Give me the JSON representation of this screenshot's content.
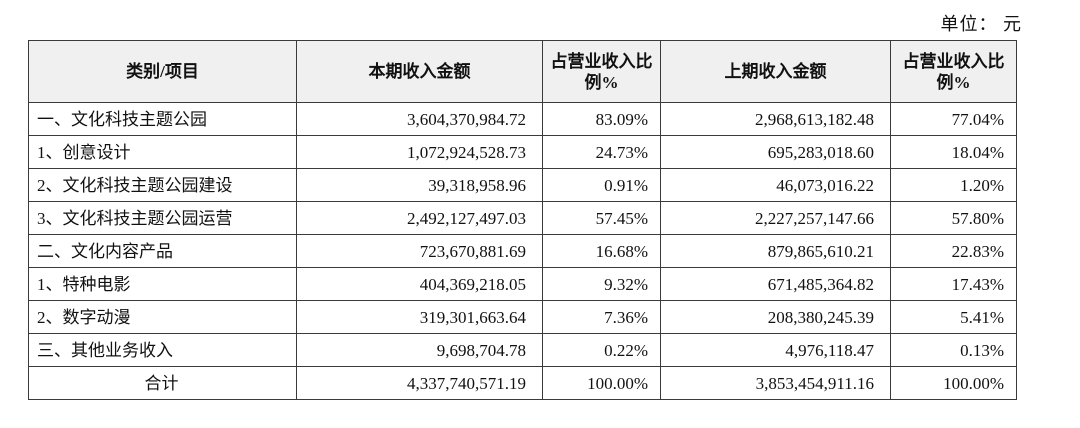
{
  "page": {
    "unit_label": "单位： 元"
  },
  "table": {
    "headers": {
      "category": "类别/项目",
      "current_amount": "本期收入金额",
      "current_ratio": "占营业收入比例%",
      "prior_amount": "上期收入金额",
      "prior_ratio": "占营业收入比例%"
    },
    "rows": [
      {
        "category": "一、文化科技主题公园",
        "current_amount": "3,604,370,984.72",
        "current_ratio": "83.09%",
        "prior_amount": "2,968,613,182.48",
        "prior_ratio": "77.04%"
      },
      {
        "category": "1、创意设计",
        "current_amount": "1,072,924,528.73",
        "current_ratio": "24.73%",
        "prior_amount": "695,283,018.60",
        "prior_ratio": "18.04%"
      },
      {
        "category": "2、文化科技主题公园建设",
        "current_amount": "39,318,958.96",
        "current_ratio": "0.91%",
        "prior_amount": "46,073,016.22",
        "prior_ratio": "1.20%"
      },
      {
        "category": "3、文化科技主题公园运营",
        "current_amount": "2,492,127,497.03",
        "current_ratio": "57.45%",
        "prior_amount": "2,227,257,147.66",
        "prior_ratio": "57.80%"
      },
      {
        "category": "二、文化内容产品",
        "current_amount": "723,670,881.69",
        "current_ratio": "16.68%",
        "prior_amount": "879,865,610.21",
        "prior_ratio": "22.83%"
      },
      {
        "category": "1、特种电影",
        "current_amount": "404,369,218.05",
        "current_ratio": "9.32%",
        "prior_amount": "671,485,364.82",
        "prior_ratio": "17.43%"
      },
      {
        "category": "2、数字动漫",
        "current_amount": "319,301,663.64",
        "current_ratio": "7.36%",
        "prior_amount": "208,380,245.39",
        "prior_ratio": "5.41%"
      },
      {
        "category": "三、其他业务收入",
        "current_amount": "9,698,704.78",
        "current_ratio": "0.22%",
        "prior_amount": "4,976,118.47",
        "prior_ratio": "0.13%"
      },
      {
        "category": "合计",
        "current_amount": "4,337,740,571.19",
        "current_ratio": "100.00%",
        "prior_amount": "3,853,454,911.16",
        "prior_ratio": "100.00%"
      }
    ]
  }
}
